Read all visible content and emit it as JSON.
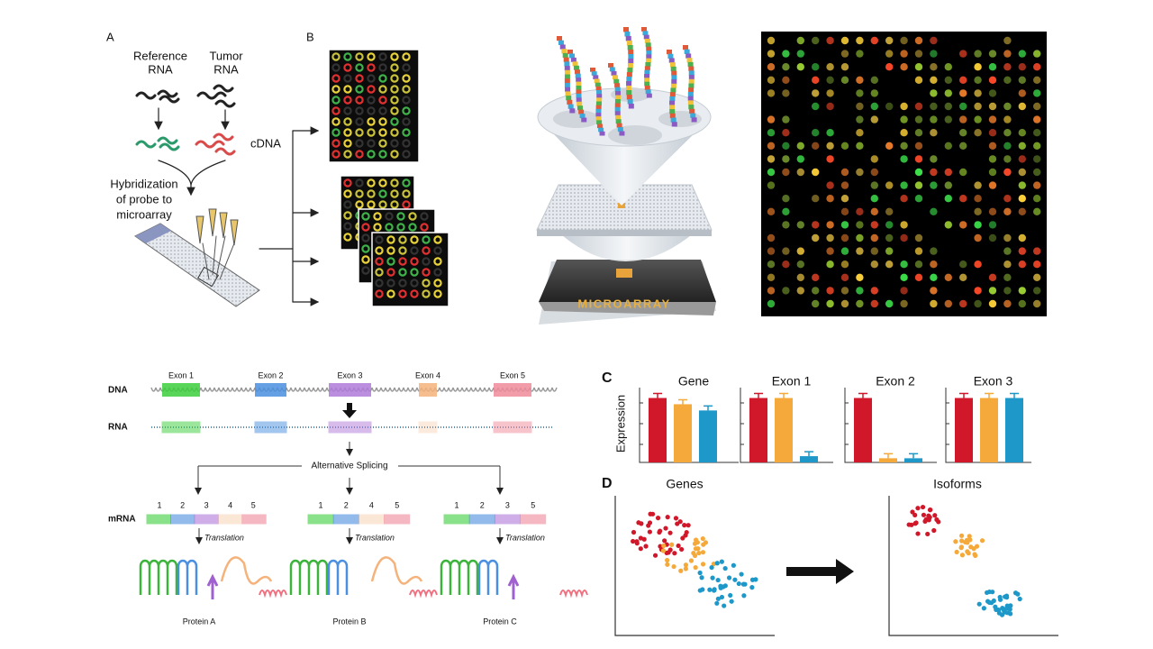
{
  "panel_a": {
    "label": "A",
    "reference": [
      "Reference",
      "RNA"
    ],
    "tumor": [
      "Tumor",
      "RNA"
    ],
    "cdna": "cDNA",
    "hybridization": [
      "Hybridization",
      "of probe to",
      "microarray"
    ]
  },
  "panel_b": {
    "label": "B"
  },
  "chip": {
    "label": "MICROARRAY"
  },
  "splicing": {
    "dna": "DNA",
    "rna": "RNA",
    "exons": [
      "Exon 1",
      "Exon 2",
      "Exon 3",
      "Exon 4",
      "Exon 5"
    ],
    "alternative": "Alternative Splicing",
    "mrna": "mRNA",
    "isoforms": [
      {
        "numbers": [
          "1",
          "2",
          "3",
          "4",
          "5"
        ],
        "translation": "Translation",
        "protein": "Protein A"
      },
      {
        "numbers": [
          "1",
          "2",
          "4",
          "5"
        ],
        "translation": "Translation",
        "protein": "Protein B"
      },
      {
        "numbers": [
          "1",
          "2",
          "3",
          "5"
        ],
        "translation": "Translation",
        "protein": "Protein C"
      }
    ]
  },
  "panel_c": {
    "label": "C",
    "axis_label": "Expression",
    "ylim": [
      0,
      3.6
    ],
    "colors": [
      "#d0182a",
      "#f5a93a",
      "#1d98c8"
    ],
    "charts": [
      {
        "title": "Gene",
        "values": [
          3.1,
          2.8,
          2.5
        ]
      },
      {
        "title": "Exon 1",
        "values": [
          3.1,
          3.1,
          0.3
        ]
      },
      {
        "title": "Exon 2",
        "values": [
          3.1,
          0.2,
          0.2
        ]
      },
      {
        "title": "Exon 3",
        "values": [
          3.1,
          3.1,
          3.1
        ]
      }
    ]
  },
  "panel_d": {
    "label": "D",
    "left_title": "Genes",
    "right_title": "Isoforms"
  }
}
